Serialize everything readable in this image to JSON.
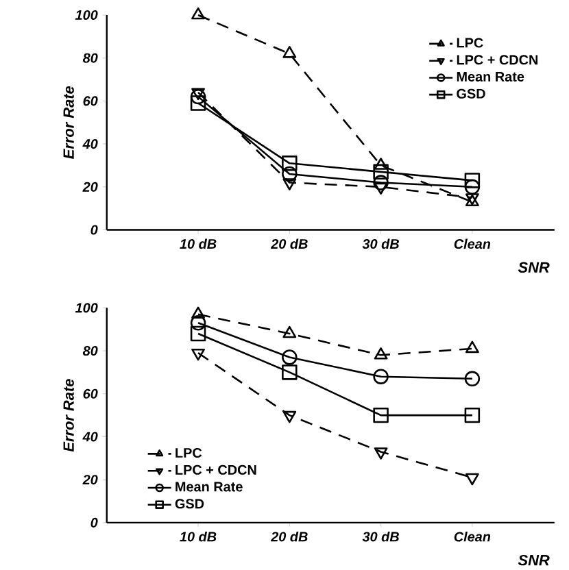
{
  "chart_data": [
    {
      "type": "line",
      "ylabel": "Error Rate",
      "xlabel": "SNR",
      "categories": [
        "10 dB",
        "20 dB",
        "30 dB",
        "Clean"
      ],
      "ylim": [
        0,
        100
      ],
      "yticks": [
        0,
        20,
        40,
        60,
        80,
        100
      ],
      "legend": "top right",
      "grid": false,
      "series": [
        {
          "name": "LPC",
          "color": "#000000",
          "values": [
            100,
            82,
            30,
            13
          ],
          "marker": "triangle",
          "line_style": "dashed"
        },
        {
          "name": "LPC + CDCN",
          "color": "#000000",
          "values": [
            64,
            22,
            20,
            15
          ],
          "marker": "triangle-down",
          "line_style": "dashed"
        },
        {
          "name": "Mean Rate",
          "color": "#000000",
          "values": [
            62,
            26,
            22,
            20
          ],
          "marker": "circle",
          "line_style": "solid"
        },
        {
          "name": "GSD",
          "color": "#000000",
          "values": [
            59,
            31,
            27,
            23
          ],
          "marker": "square",
          "line_style": "solid"
        }
      ]
    },
    {
      "type": "line",
      "ylabel": "Error Rate",
      "xlabel": "SNR",
      "categories": [
        "10 dB",
        "20 dB",
        "30 dB",
        "Clean"
      ],
      "ylim": [
        0,
        100
      ],
      "yticks": [
        0,
        20,
        40,
        60,
        80,
        100
      ],
      "legend": "bottom left",
      "grid": false,
      "series": [
        {
          "name": "LPC",
          "color": "#000000",
          "values": [
            97,
            88,
            78,
            81
          ],
          "marker": "triangle",
          "line_style": "dashed"
        },
        {
          "name": "LPC + CDCN",
          "color": "#000000",
          "values": [
            79,
            50,
            33,
            21
          ],
          "marker": "triangle-down",
          "line_style": "dashed"
        },
        {
          "name": "Mean Rate",
          "color": "#000000",
          "values": [
            93,
            77,
            68,
            67
          ],
          "marker": "circle",
          "line_style": "solid"
        },
        {
          "name": "GSD",
          "color": "#000000",
          "values": [
            88,
            70,
            50,
            50
          ],
          "marker": "square",
          "line_style": "solid"
        }
      ]
    }
  ]
}
